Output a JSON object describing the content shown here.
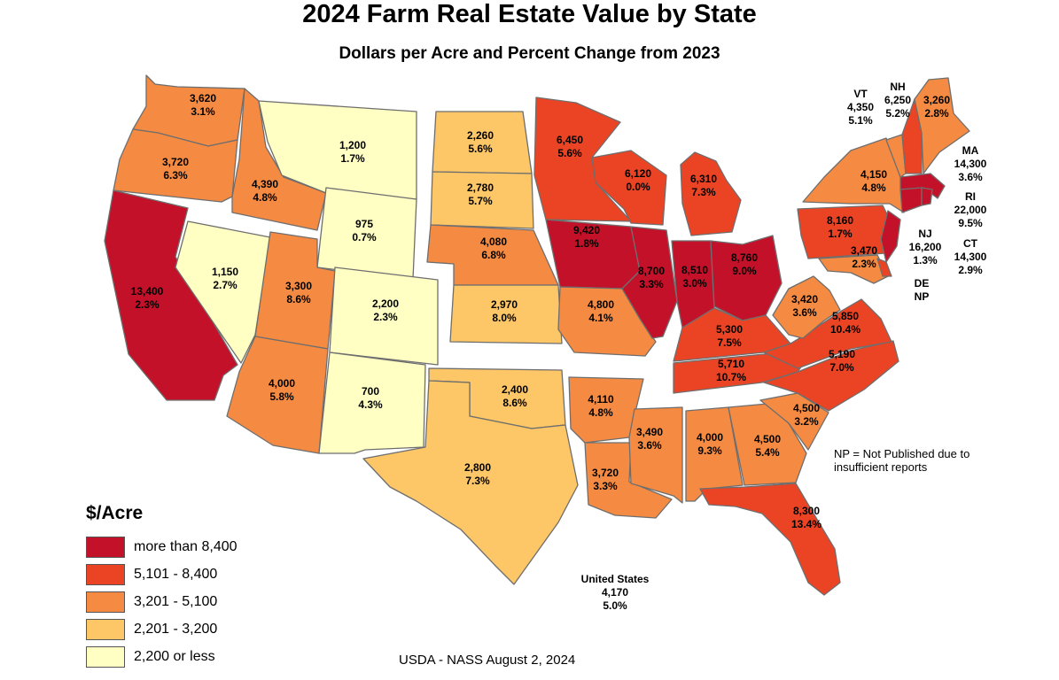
{
  "title": "2024 Farm Real Estate Value by State",
  "subtitle": "Dollars per Acre and Percent Change from 2023",
  "legend": {
    "title": "$/Acre",
    "items": [
      {
        "label": "more than 8,400",
        "color": "#c4112a"
      },
      {
        "label": "5,101 - 8,400",
        "color": "#ea4425"
      },
      {
        "label": "3,201 - 5,100",
        "color": "#f58b42"
      },
      {
        "label": "2,201 - 3,200",
        "color": "#fdc767"
      },
      {
        "label": "2,200 or less",
        "color": "#ffffc4"
      }
    ]
  },
  "note": "NP = Not Published due to insufficient reports",
  "source": "USDA - NASS August 2, 2024",
  "states": {
    "WA": {
      "value": "3,620",
      "change": "3.1%",
      "class": 2
    },
    "OR": {
      "value": "3,720",
      "change": "6.3%",
      "class": 2
    },
    "CA": {
      "value": "13,400",
      "change": "2.3%",
      "class": 0
    },
    "ID": {
      "value": "4,390",
      "change": "4.8%",
      "class": 2
    },
    "NV": {
      "value": "1,150",
      "change": "2.7%",
      "class": 4
    },
    "MT": {
      "value": "1,200",
      "change": "1.7%",
      "class": 4
    },
    "WY": {
      "value": "975",
      "change": "0.7%",
      "class": 4
    },
    "UT": {
      "value": "3,300",
      "change": "8.6%",
      "class": 2
    },
    "CO": {
      "value": "2,200",
      "change": "2.3%",
      "class": 4
    },
    "AZ": {
      "value": "4,000",
      "change": "5.8%",
      "class": 2
    },
    "NM": {
      "value": "700",
      "change": "4.3%",
      "class": 4
    },
    "ND": {
      "value": "2,260",
      "change": "5.6%",
      "class": 3
    },
    "SD": {
      "value": "2,780",
      "change": "5.7%",
      "class": 3
    },
    "NE": {
      "value": "4,080",
      "change": "6.8%",
      "class": 2
    },
    "KS": {
      "value": "2,970",
      "change": "8.0%",
      "class": 3
    },
    "OK": {
      "value": "2,400",
      "change": "8.6%",
      "class": 3
    },
    "TX": {
      "value": "2,800",
      "change": "7.3%",
      "class": 3
    },
    "MN": {
      "value": "6,450",
      "change": "5.6%",
      "class": 1
    },
    "IA": {
      "value": "9,420",
      "change": "1.8%",
      "class": 0
    },
    "MO": {
      "value": "4,800",
      "change": "4.1%",
      "class": 2
    },
    "AR": {
      "value": "4,110",
      "change": "4.8%",
      "class": 2
    },
    "LA": {
      "value": "3,720",
      "change": "3.3%",
      "class": 2
    },
    "WI": {
      "value": "6,120",
      "change": "0.0%",
      "class": 1
    },
    "IL": {
      "value": "8,700",
      "change": "3.3%",
      "class": 0
    },
    "MI": {
      "value": "6,310",
      "change": "7.3%",
      "class": 1
    },
    "IN": {
      "value": "8,510",
      "change": "3.0%",
      "class": 0
    },
    "OH": {
      "value": "8,760",
      "change": "9.0%",
      "class": 0
    },
    "KY": {
      "value": "5,300",
      "change": "7.5%",
      "class": 1
    },
    "TN": {
      "value": "5,710",
      "change": "10.7%",
      "class": 1
    },
    "MS": {
      "value": "3,490",
      "change": "3.6%",
      "class": 2
    },
    "AL": {
      "value": "4,000",
      "change": "9.3%",
      "class": 2
    },
    "GA": {
      "value": "4,500",
      "change": "5.4%",
      "class": 2
    },
    "FL": {
      "value": "8,300",
      "change": "13.4%",
      "class": 1
    },
    "SC": {
      "value": "4,500",
      "change": "3.2%",
      "class": 2
    },
    "NC": {
      "value": "5,190",
      "change": "7.0%",
      "class": 1
    },
    "VA": {
      "value": "5,850",
      "change": "10.4%",
      "class": 1
    },
    "WV": {
      "value": "3,420",
      "change": "3.6%",
      "class": 2
    },
    "PA": {
      "value": "8,160",
      "change": "1.7%",
      "class": 1
    },
    "NY": {
      "value": "4,150",
      "change": "4.8%",
      "class": 2
    },
    "MD": {
      "value": "3,470",
      "change": "2.3%",
      "class": 2
    },
    "ME": {
      "value": "3,260",
      "change": "2.8%",
      "class": 2
    },
    "VT": {
      "name": "VT",
      "value": "4,350",
      "change": "5.1%",
      "class": 2
    },
    "NH": {
      "name": "NH",
      "value": "6,250",
      "change": "5.2%",
      "class": 1
    },
    "MA": {
      "name": "MA",
      "value": "14,300",
      "change": "3.6%",
      "class": 0
    },
    "RI": {
      "name": "RI",
      "value": "22,000",
      "change": "9.5%",
      "class": 0
    },
    "CT": {
      "name": "CT",
      "value": "14,300",
      "change": "2.9%",
      "class": 0
    },
    "NJ": {
      "name": "NJ",
      "value": "16,200",
      "change": "1.3%",
      "class": 0
    },
    "DE": {
      "name": "DE",
      "value": "NP",
      "class": 1
    }
  },
  "us": {
    "name": "United States",
    "value": "4,170",
    "change": "5.0%"
  }
}
